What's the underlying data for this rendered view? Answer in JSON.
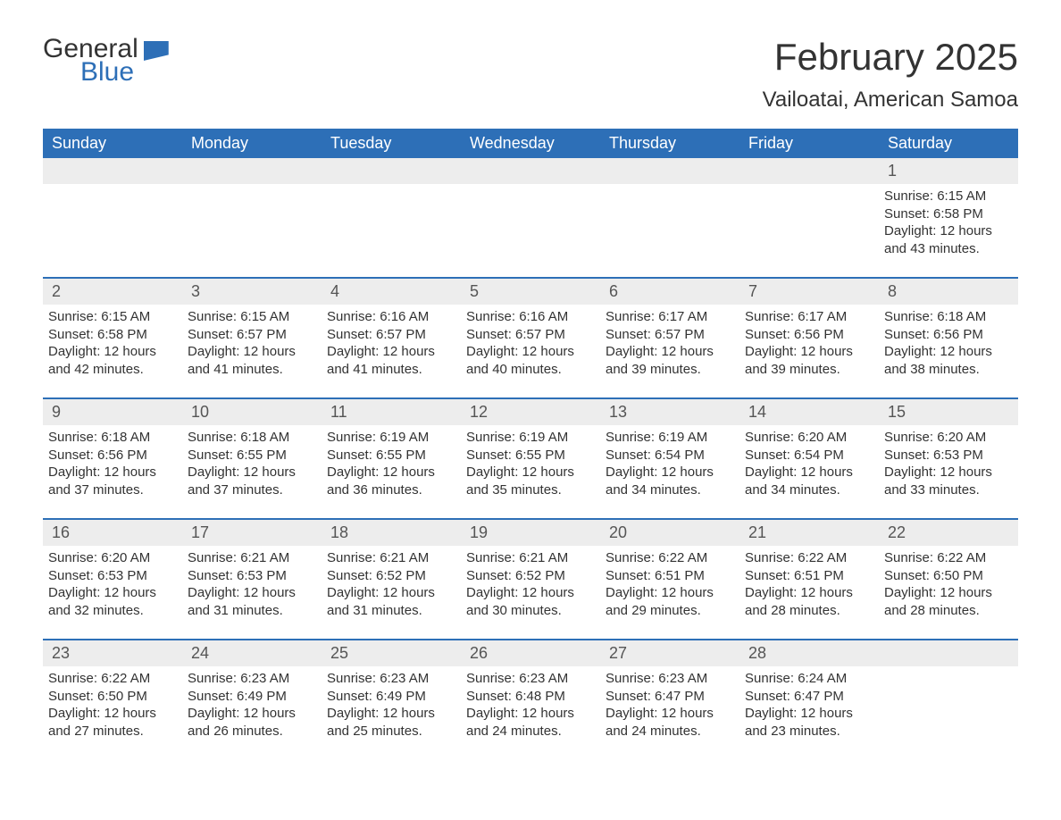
{
  "logo": {
    "text_general": "General",
    "text_blue": "Blue"
  },
  "title": "February 2025",
  "location": "Vailoatai, American Samoa",
  "colors": {
    "header_bg": "#2d6fb7",
    "header_text": "#ffffff",
    "daynum_bg": "#ededed",
    "text": "#333333",
    "border": "#2d6fb7"
  },
  "weekdays": [
    "Sunday",
    "Monday",
    "Tuesday",
    "Wednesday",
    "Thursday",
    "Friday",
    "Saturday"
  ],
  "weeks": [
    [
      null,
      null,
      null,
      null,
      null,
      null,
      {
        "n": "1",
        "sunrise": "Sunrise: 6:15 AM",
        "sunset": "Sunset: 6:58 PM",
        "daylight": "Daylight: 12 hours and 43 minutes."
      }
    ],
    [
      {
        "n": "2",
        "sunrise": "Sunrise: 6:15 AM",
        "sunset": "Sunset: 6:58 PM",
        "daylight": "Daylight: 12 hours and 42 minutes."
      },
      {
        "n": "3",
        "sunrise": "Sunrise: 6:15 AM",
        "sunset": "Sunset: 6:57 PM",
        "daylight": "Daylight: 12 hours and 41 minutes."
      },
      {
        "n": "4",
        "sunrise": "Sunrise: 6:16 AM",
        "sunset": "Sunset: 6:57 PM",
        "daylight": "Daylight: 12 hours and 41 minutes."
      },
      {
        "n": "5",
        "sunrise": "Sunrise: 6:16 AM",
        "sunset": "Sunset: 6:57 PM",
        "daylight": "Daylight: 12 hours and 40 minutes."
      },
      {
        "n": "6",
        "sunrise": "Sunrise: 6:17 AM",
        "sunset": "Sunset: 6:57 PM",
        "daylight": "Daylight: 12 hours and 39 minutes."
      },
      {
        "n": "7",
        "sunrise": "Sunrise: 6:17 AM",
        "sunset": "Sunset: 6:56 PM",
        "daylight": "Daylight: 12 hours and 39 minutes."
      },
      {
        "n": "8",
        "sunrise": "Sunrise: 6:18 AM",
        "sunset": "Sunset: 6:56 PM",
        "daylight": "Daylight: 12 hours and 38 minutes."
      }
    ],
    [
      {
        "n": "9",
        "sunrise": "Sunrise: 6:18 AM",
        "sunset": "Sunset: 6:56 PM",
        "daylight": "Daylight: 12 hours and 37 minutes."
      },
      {
        "n": "10",
        "sunrise": "Sunrise: 6:18 AM",
        "sunset": "Sunset: 6:55 PM",
        "daylight": "Daylight: 12 hours and 37 minutes."
      },
      {
        "n": "11",
        "sunrise": "Sunrise: 6:19 AM",
        "sunset": "Sunset: 6:55 PM",
        "daylight": "Daylight: 12 hours and 36 minutes."
      },
      {
        "n": "12",
        "sunrise": "Sunrise: 6:19 AM",
        "sunset": "Sunset: 6:55 PM",
        "daylight": "Daylight: 12 hours and 35 minutes."
      },
      {
        "n": "13",
        "sunrise": "Sunrise: 6:19 AM",
        "sunset": "Sunset: 6:54 PM",
        "daylight": "Daylight: 12 hours and 34 minutes."
      },
      {
        "n": "14",
        "sunrise": "Sunrise: 6:20 AM",
        "sunset": "Sunset: 6:54 PM",
        "daylight": "Daylight: 12 hours and 34 minutes."
      },
      {
        "n": "15",
        "sunrise": "Sunrise: 6:20 AM",
        "sunset": "Sunset: 6:53 PM",
        "daylight": "Daylight: 12 hours and 33 minutes."
      }
    ],
    [
      {
        "n": "16",
        "sunrise": "Sunrise: 6:20 AM",
        "sunset": "Sunset: 6:53 PM",
        "daylight": "Daylight: 12 hours and 32 minutes."
      },
      {
        "n": "17",
        "sunrise": "Sunrise: 6:21 AM",
        "sunset": "Sunset: 6:53 PM",
        "daylight": "Daylight: 12 hours and 31 minutes."
      },
      {
        "n": "18",
        "sunrise": "Sunrise: 6:21 AM",
        "sunset": "Sunset: 6:52 PM",
        "daylight": "Daylight: 12 hours and 31 minutes."
      },
      {
        "n": "19",
        "sunrise": "Sunrise: 6:21 AM",
        "sunset": "Sunset: 6:52 PM",
        "daylight": "Daylight: 12 hours and 30 minutes."
      },
      {
        "n": "20",
        "sunrise": "Sunrise: 6:22 AM",
        "sunset": "Sunset: 6:51 PM",
        "daylight": "Daylight: 12 hours and 29 minutes."
      },
      {
        "n": "21",
        "sunrise": "Sunrise: 6:22 AM",
        "sunset": "Sunset: 6:51 PM",
        "daylight": "Daylight: 12 hours and 28 minutes."
      },
      {
        "n": "22",
        "sunrise": "Sunrise: 6:22 AM",
        "sunset": "Sunset: 6:50 PM",
        "daylight": "Daylight: 12 hours and 28 minutes."
      }
    ],
    [
      {
        "n": "23",
        "sunrise": "Sunrise: 6:22 AM",
        "sunset": "Sunset: 6:50 PM",
        "daylight": "Daylight: 12 hours and 27 minutes."
      },
      {
        "n": "24",
        "sunrise": "Sunrise: 6:23 AM",
        "sunset": "Sunset: 6:49 PM",
        "daylight": "Daylight: 12 hours and 26 minutes."
      },
      {
        "n": "25",
        "sunrise": "Sunrise: 6:23 AM",
        "sunset": "Sunset: 6:49 PM",
        "daylight": "Daylight: 12 hours and 25 minutes."
      },
      {
        "n": "26",
        "sunrise": "Sunrise: 6:23 AM",
        "sunset": "Sunset: 6:48 PM",
        "daylight": "Daylight: 12 hours and 24 minutes."
      },
      {
        "n": "27",
        "sunrise": "Sunrise: 6:23 AM",
        "sunset": "Sunset: 6:47 PM",
        "daylight": "Daylight: 12 hours and 24 minutes."
      },
      {
        "n": "28",
        "sunrise": "Sunrise: 6:24 AM",
        "sunset": "Sunset: 6:47 PM",
        "daylight": "Daylight: 12 hours and 23 minutes."
      },
      null
    ]
  ]
}
